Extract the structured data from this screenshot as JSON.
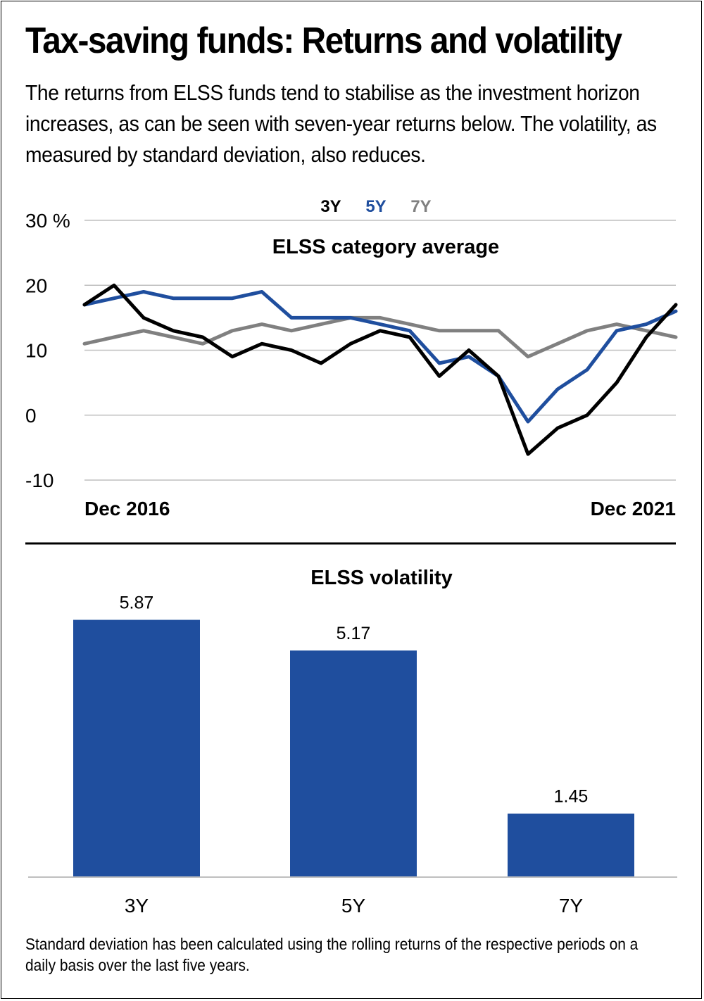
{
  "title": "Tax-saving funds: Returns and volatility",
  "subtitle": "The returns from ELSS funds tend to stabilise as the investment horizon increases, as can be seen with seven-year returns below. The volatility, as measured by standard deviation, also reduces.",
  "footnote": "Standard deviation has been calculated using the rolling returns of the respective periods on a daily basis over the last five years.",
  "colors": {
    "3Y": "#000000",
    "5Y": "#1f4e9e",
    "7Y": "#808080",
    "bar": "#1f4e9e",
    "grid": "#bfbfbf"
  },
  "chart_data": [
    {
      "type": "line",
      "title": "ELSS category average",
      "x_start_label": "Dec 2016",
      "x_end_label": "Dec 2021",
      "ylim": [
        -10,
        30
      ],
      "y_ticks": [
        -10,
        0,
        10,
        20,
        30
      ],
      "y_tick_labels": [
        "-10",
        "0",
        "10",
        "20",
        "30 %"
      ],
      "grid": true,
      "legend_position": "top-center",
      "x": [
        "2016-12",
        "2017-03",
        "2017-06",
        "2017-09",
        "2017-12",
        "2018-03",
        "2018-06",
        "2018-09",
        "2018-12",
        "2019-03",
        "2019-06",
        "2019-09",
        "2019-12",
        "2020-03",
        "2020-06",
        "2020-09",
        "2020-12",
        "2021-03",
        "2021-06",
        "2021-09",
        "2021-12"
      ],
      "series": [
        {
          "name": "3Y",
          "color": "#000000",
          "values": [
            17,
            20,
            15,
            13,
            12,
            9,
            11,
            10,
            8,
            11,
            13,
            12,
            6,
            10,
            6,
            -6,
            -2,
            0,
            5,
            12,
            17
          ]
        },
        {
          "name": "5Y",
          "color": "#1f4e9e",
          "values": [
            17,
            18,
            19,
            18,
            18,
            18,
            19,
            15,
            15,
            15,
            14,
            13,
            8,
            9,
            6,
            -1,
            4,
            7,
            13,
            14,
            16
          ]
        },
        {
          "name": "7Y",
          "color": "#808080",
          "values": [
            11,
            12,
            13,
            12,
            11,
            13,
            14,
            13,
            14,
            15,
            15,
            14,
            13,
            13,
            13,
            9,
            11,
            13,
            14,
            13,
            12
          ]
        }
      ]
    },
    {
      "type": "bar",
      "title": "ELSS volatility",
      "categories": [
        "3Y",
        "5Y",
        "7Y"
      ],
      "values": [
        5.87,
        5.17,
        1.45
      ],
      "value_labels": [
        "5.87",
        "5.17",
        "1.45"
      ],
      "ylim": [
        0,
        6.2
      ]
    }
  ]
}
